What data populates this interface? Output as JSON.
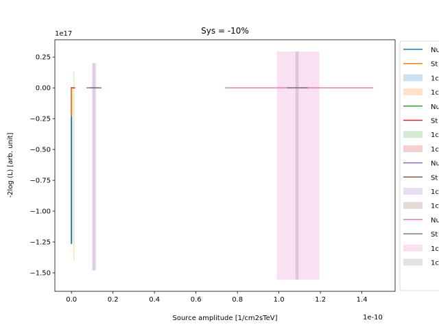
{
  "chart_data": {
    "type": "line",
    "title": "Sys = -10%",
    "xlabel": "Source amplitude [1/cm2sTeV]",
    "ylabel": "-2log (L) [arb. unit]",
    "x_offset_label": "1e-10",
    "y_offset_label": "1e17",
    "x_scale_exp": -10,
    "y_scale_exp": 17,
    "xlim": [
      -0.08,
      1.56
    ],
    "ylim": [
      -1.65,
      0.39
    ],
    "xticks": [
      0.0,
      0.2,
      0.4,
      0.6,
      0.8,
      1.0,
      1.2,
      1.4
    ],
    "xtick_labels": [
      "0.0",
      "0.2",
      "0.4",
      "0.6",
      "0.8",
      "1.0",
      "1.2",
      "1.4"
    ],
    "yticks": [
      0.25,
      0.0,
      -0.25,
      -0.5,
      -0.75,
      -1.0,
      -1.25,
      -1.5
    ],
    "ytick_labels": [
      "0.25",
      "0.00",
      "−0.25",
      "−0.50",
      "−0.75",
      "−1.00",
      "−1.25",
      "−1.50"
    ],
    "legend_placement": "right, outside plot (clipped)",
    "legend": [
      {
        "label": "Nu",
        "kind": "line",
        "color": "#1f77b4"
      },
      {
        "label": "St",
        "kind": "line",
        "color": "#ff7f0e"
      },
      {
        "label": "1c",
        "kind": "patch",
        "color": "#1f77b4"
      },
      {
        "label": "1c",
        "kind": "patch",
        "color": "#ff7f0e"
      },
      {
        "label": "Nu",
        "kind": "line",
        "color": "#2ca02c"
      },
      {
        "label": "St",
        "kind": "line",
        "color": "#d62728"
      },
      {
        "label": "1c",
        "kind": "patch",
        "color": "#2ca02c"
      },
      {
        "label": "1c",
        "kind": "patch",
        "color": "#d62728"
      },
      {
        "label": "Nu",
        "kind": "line",
        "color": "#9467bd"
      },
      {
        "label": "St",
        "kind": "line",
        "color": "#8c564b"
      },
      {
        "label": "1c",
        "kind": "patch",
        "color": "#9467bd"
      },
      {
        "label": "1c",
        "kind": "patch",
        "color": "#8c564b"
      },
      {
        "label": "Nu",
        "kind": "line",
        "color": "#e377c2"
      },
      {
        "label": "St",
        "kind": "line",
        "color": "#7f7f7f"
      },
      {
        "label": "1c",
        "kind": "patch",
        "color": "#e377c2"
      },
      {
        "label": "1c",
        "kind": "patch",
        "color": "#7f7f7f"
      }
    ],
    "bands": [
      {
        "x0": 0.99,
        "x1": 1.195,
        "y0": -1.555,
        "y1": 0.295,
        "color": "#e377c2",
        "opacity": 0.22
      },
      {
        "x0": 1.08,
        "x1": 1.095,
        "y0": -1.555,
        "y1": 0.295,
        "color": "#7f7f7f",
        "opacity": 0.25
      },
      {
        "x0": 0.099,
        "x1": 0.119,
        "y0": -1.48,
        "y1": 0.2,
        "color": "#9467bd",
        "opacity": 0.22
      },
      {
        "x0": 0.104,
        "x1": 0.112,
        "y0": -1.48,
        "y1": 0.2,
        "color": "#8c564b",
        "opacity": 0.15
      }
    ],
    "series": [
      {
        "name": "",
        "color": "#1f77b4",
        "width": 2,
        "points": [
          [
            0.0,
            -1.265
          ],
          [
            0.0,
            0.0
          ],
          [
            0.002,
            0.0
          ]
        ]
      },
      {
        "name": "",
        "color": "#ff7f0e",
        "width": 2,
        "points": [
          [
            0.0,
            -0.23
          ],
          [
            0.0,
            0.0
          ],
          [
            0.004,
            0.0
          ]
        ]
      },
      {
        "name": "",
        "color": "#bcbd22",
        "width": 1,
        "opacity": 0.5,
        "points": [
          [
            0.012,
            -1.395
          ],
          [
            0.012,
            0.13
          ]
        ]
      },
      {
        "name": "",
        "color": "#d62728",
        "width": 1.5,
        "points": [
          [
            0.0,
            0.0
          ],
          [
            0.018,
            0.0
          ]
        ]
      },
      {
        "name": "",
        "color": "#9467bd",
        "width": 1.5,
        "points": [
          [
            0.072,
            0.0
          ],
          [
            0.145,
            0.0
          ]
        ]
      },
      {
        "name": "",
        "color": "#7f7f7f",
        "width": 2,
        "opacity": 0.8,
        "points": [
          [
            0.09,
            0.0
          ],
          [
            0.13,
            0.0
          ]
        ]
      },
      {
        "name": "",
        "color": "#e377c2",
        "width": 1.5,
        "points": [
          [
            0.74,
            0.0
          ],
          [
            1.455,
            0.0
          ]
        ]
      },
      {
        "name": "",
        "color": "#7f7f7f",
        "width": 2,
        "opacity": 0.8,
        "points": [
          [
            1.04,
            0.0
          ],
          [
            1.14,
            0.0
          ]
        ]
      }
    ]
  }
}
